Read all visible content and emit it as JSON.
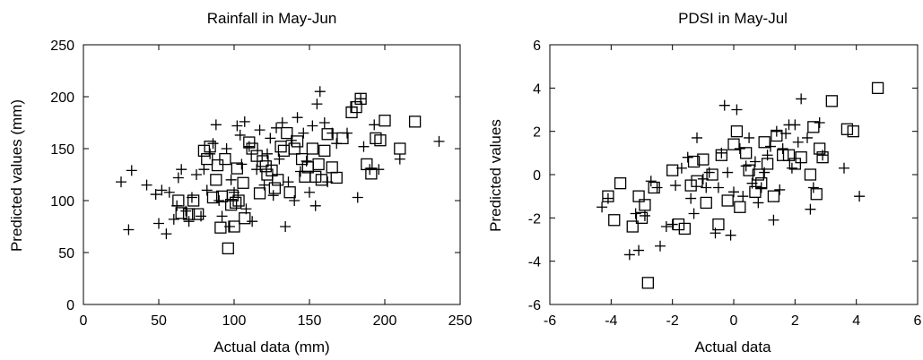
{
  "chart_data": [
    {
      "type": "scatter",
      "title": "Rainfall in May-Jun",
      "xlabel": "Actual data (mm)",
      "ylabel": "Predicted values (mm)",
      "xlim": [
        0,
        250
      ],
      "ylim": [
        0,
        250
      ],
      "xticks": [
        0,
        50,
        100,
        150,
        200,
        250
      ],
      "yticks": [
        0,
        50,
        100,
        150,
        200,
        250
      ],
      "xtick_labels": [
        "0",
        "50",
        "100",
        "150",
        "200",
        "250"
      ],
      "ytick_labels": [
        "0",
        "50",
        "100",
        "150",
        "200",
        "250"
      ],
      "grid": false,
      "series": [
        {
          "marker": "plus",
          "points": [
            [
              25,
              118
            ],
            [
              30,
              72
            ],
            [
              32,
              129
            ],
            [
              42,
              115
            ],
            [
              48,
              106
            ],
            [
              50,
              78
            ],
            [
              52,
              110
            ],
            [
              55,
              68
            ],
            [
              57,
              108
            ],
            [
              60,
              82
            ],
            [
              62,
              95
            ],
            [
              63,
              122
            ],
            [
              65,
              130
            ],
            [
              68,
              90
            ],
            [
              70,
              80
            ],
            [
              72,
              103
            ],
            [
              75,
              125
            ],
            [
              78,
              85
            ],
            [
              80,
              130
            ],
            [
              82,
              110
            ],
            [
              84,
              145
            ],
            [
              86,
              155
            ],
            [
              88,
              173
            ],
            [
              90,
              100
            ],
            [
              92,
              85
            ],
            [
              95,
              150
            ],
            [
              97,
              75
            ],
            [
              98,
              120
            ],
            [
              100,
              108
            ],
            [
              102,
              172
            ],
            [
              104,
              163
            ],
            [
              105,
              135
            ],
            [
              107,
              176
            ],
            [
              108,
              92
            ],
            [
              110,
              152
            ],
            [
              112,
              80
            ],
            [
              115,
              130
            ],
            [
              117,
              168
            ],
            [
              120,
              115
            ],
            [
              122,
              145
            ],
            [
              124,
              160
            ],
            [
              126,
              105
            ],
            [
              128,
              170
            ],
            [
              130,
              140
            ],
            [
              132,
              175
            ],
            [
              134,
              75
            ],
            [
              136,
              118
            ],
            [
              138,
              158
            ],
            [
              140,
              100
            ],
            [
              142,
              180
            ],
            [
              144,
              128
            ],
            [
              146,
              165
            ],
            [
              148,
              138
            ],
            [
              150,
              108
            ],
            [
              152,
              172
            ],
            [
              154,
              95
            ],
            [
              155,
              193
            ],
            [
              157,
              205
            ],
            [
              160,
              175
            ],
            [
              162,
              118
            ],
            [
              165,
              165
            ],
            [
              168,
              155
            ],
            [
              175,
              165
            ],
            [
              178,
              190
            ],
            [
              182,
              103
            ],
            [
              184,
              198
            ],
            [
              186,
              152
            ],
            [
              190,
              130
            ],
            [
              193,
              173
            ],
            [
              196,
              130
            ],
            [
              210,
              140
            ],
            [
              236,
              157
            ]
          ]
        },
        {
          "marker": "square",
          "points": [
            [
              63,
              100
            ],
            [
              65,
              88
            ],
            [
              70,
              87
            ],
            [
              73,
              100
            ],
            [
              76,
              87
            ],
            [
              80,
              148
            ],
            [
              82,
              140
            ],
            [
              84,
              152
            ],
            [
              86,
              103
            ],
            [
              88,
              120
            ],
            [
              89,
              134
            ],
            [
              91,
              74
            ],
            [
              92,
              104
            ],
            [
              94,
              140
            ],
            [
              96,
              54
            ],
            [
              98,
              96
            ],
            [
              99,
              105
            ],
            [
              100,
              75
            ],
            [
              101,
              98
            ],
            [
              102,
              131
            ],
            [
              103,
              100
            ],
            [
              106,
              117
            ],
            [
              107,
              83
            ],
            [
              110,
              156
            ],
            [
              112,
              150
            ],
            [
              115,
              143
            ],
            [
              117,
              107
            ],
            [
              119,
              138
            ],
            [
              121,
              133
            ],
            [
              122,
              125
            ],
            [
              125,
              129
            ],
            [
              127,
              112
            ],
            [
              129,
              120
            ],
            [
              131,
              152
            ],
            [
              133,
              148
            ],
            [
              135,
              165
            ],
            [
              137,
              108
            ],
            [
              140,
              150
            ],
            [
              142,
              157
            ],
            [
              145,
              140
            ],
            [
              147,
              123
            ],
            [
              149,
              132
            ],
            [
              152,
              150
            ],
            [
              154,
              123
            ],
            [
              156,
              135
            ],
            [
              158,
              120
            ],
            [
              160,
              148
            ],
            [
              162,
              164
            ],
            [
              165,
              132
            ],
            [
              168,
              122
            ],
            [
              172,
              160
            ],
            [
              178,
              185
            ],
            [
              181,
              190
            ],
            [
              184,
              198
            ],
            [
              188,
              135
            ],
            [
              191,
              126
            ],
            [
              194,
              160
            ],
            [
              197,
              158
            ],
            [
              200,
              177
            ],
            [
              210,
              150
            ],
            [
              220,
              176
            ]
          ]
        }
      ]
    },
    {
      "type": "scatter",
      "title": "PDSI in May-Jul",
      "xlabel": "Actual data",
      "ylabel": "Predicted values",
      "xlim": [
        -6,
        6
      ],
      "ylim": [
        -6,
        6
      ],
      "xticks": [
        -6,
        -4,
        -2,
        0,
        2,
        4,
        6
      ],
      "yticks": [
        -6,
        -4,
        -2,
        0,
        2,
        4,
        6
      ],
      "xtick_labels": [
        "-6",
        "-4",
        "-2",
        "0",
        "2",
        "4",
        "6"
      ],
      "ytick_labels": [
        "-6",
        "-4",
        "-2",
        "0",
        "2",
        "4",
        "6"
      ],
      "grid": false,
      "series": [
        {
          "marker": "plus",
          "points": [
            [
              -4.3,
              -1.5
            ],
            [
              -4.1,
              -1.1
            ],
            [
              -3.4,
              -3.7
            ],
            [
              -3.2,
              -1.8
            ],
            [
              -3.1,
              -3.5
            ],
            [
              -2.9,
              -1.9
            ],
            [
              -2.7,
              -0.3
            ],
            [
              -2.5,
              -0.6
            ],
            [
              -2.4,
              -3.3
            ],
            [
              -2.2,
              -2.4
            ],
            [
              -2.0,
              -2.3
            ],
            [
              -1.9,
              -0.5
            ],
            [
              -1.7,
              0.3
            ],
            [
              -1.5,
              0.8
            ],
            [
              -1.4,
              -1.1
            ],
            [
              -1.3,
              -1.8
            ],
            [
              -1.2,
              1.7
            ],
            [
              -1.0,
              -0.2
            ],
            [
              -0.9,
              -0.6
            ],
            [
              -0.8,
              0.1
            ],
            [
              -0.6,
              -2.7
            ],
            [
              -0.5,
              -0.6
            ],
            [
              -0.4,
              1.0
            ],
            [
              -0.3,
              3.2
            ],
            [
              -0.2,
              0.1
            ],
            [
              -0.1,
              -2.8
            ],
            [
              0.0,
              -0.8
            ],
            [
              0.1,
              3.0
            ],
            [
              0.2,
              1.2
            ],
            [
              0.3,
              -1.0
            ],
            [
              0.4,
              0.4
            ],
            [
              0.5,
              1.7
            ],
            [
              0.6,
              -0.4
            ],
            [
              0.7,
              0.6
            ],
            [
              0.8,
              -1.3
            ],
            [
              0.9,
              -0.6
            ],
            [
              1.0,
              0.1
            ],
            [
              1.1,
              0.9
            ],
            [
              1.2,
              1.3
            ],
            [
              1.3,
              -2.1
            ],
            [
              1.4,
              2.0
            ],
            [
              1.5,
              -0.7
            ],
            [
              1.6,
              1.2
            ],
            [
              1.7,
              1.9
            ],
            [
              1.8,
              2.3
            ],
            [
              1.9,
              0.3
            ],
            [
              2.0,
              2.3
            ],
            [
              2.1,
              1.5
            ],
            [
              2.2,
              3.5
            ],
            [
              2.4,
              1.7
            ],
            [
              2.5,
              -1.6
            ],
            [
              2.6,
              -0.6
            ],
            [
              2.8,
              2.4
            ],
            [
              2.9,
              0.9
            ],
            [
              3.6,
              0.3
            ],
            [
              4.1,
              -1.0
            ]
          ]
        },
        {
          "marker": "square",
          "points": [
            [
              -4.1,
              -1.0
            ],
            [
              -3.9,
              -2.1
            ],
            [
              -3.7,
              -0.4
            ],
            [
              -3.3,
              -2.4
            ],
            [
              -3.1,
              -1.0
            ],
            [
              -3.0,
              -2.0
            ],
            [
              -2.9,
              -1.4
            ],
            [
              -2.8,
              -5.0
            ],
            [
              -2.6,
              -0.6
            ],
            [
              -2.0,
              0.2
            ],
            [
              -1.8,
              -2.3
            ],
            [
              -1.6,
              -2.5
            ],
            [
              -1.4,
              -0.5
            ],
            [
              -1.3,
              0.6
            ],
            [
              -1.2,
              -0.3
            ],
            [
              -1.0,
              0.7
            ],
            [
              -0.9,
              -1.3
            ],
            [
              -0.7,
              0.0
            ],
            [
              -0.5,
              -2.3
            ],
            [
              -0.4,
              0.9
            ],
            [
              -0.2,
              -1.2
            ],
            [
              0.0,
              1.4
            ],
            [
              0.1,
              2.0
            ],
            [
              0.2,
              -1.5
            ],
            [
              0.4,
              1.0
            ],
            [
              0.5,
              0.2
            ],
            [
              0.7,
              -0.8
            ],
            [
              0.8,
              0.0
            ],
            [
              0.9,
              -0.4
            ],
            [
              1.0,
              1.5
            ],
            [
              1.1,
              0.5
            ],
            [
              1.3,
              -1.0
            ],
            [
              1.4,
              1.8
            ],
            [
              1.6,
              0.9
            ],
            [
              1.8,
              0.9
            ],
            [
              2.0,
              0.5
            ],
            [
              2.2,
              0.8
            ],
            [
              2.5,
              0.0
            ],
            [
              2.6,
              2.2
            ],
            [
              2.7,
              -0.9
            ],
            [
              2.8,
              1.2
            ],
            [
              2.9,
              0.8
            ],
            [
              3.2,
              3.4
            ],
            [
              3.7,
              2.1
            ],
            [
              3.9,
              2.0
            ],
            [
              4.7,
              4.0
            ]
          ]
        }
      ]
    }
  ]
}
